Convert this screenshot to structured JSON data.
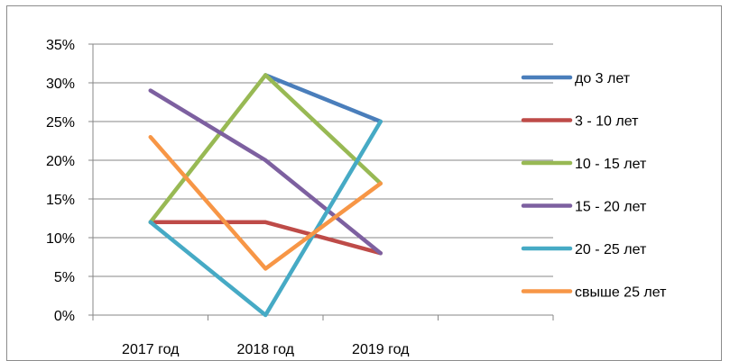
{
  "chart_data": {
    "type": "line",
    "categories": [
      "2017 год",
      "2018 год",
      "2019 год"
    ],
    "y_ticks": [
      "0%",
      "5%",
      "10%",
      "15%",
      "20%",
      "25%",
      "30%",
      "35%"
    ],
    "ylim": [
      0,
      35
    ],
    "y_unit": "%",
    "grid": true,
    "legend_position": "right",
    "series": [
      {
        "name": "до 3 лет",
        "color": "#4a7ebb",
        "values": [
          null,
          31,
          25
        ]
      },
      {
        "name": "3 - 10 лет",
        "color": "#be4b48",
        "values": [
          12,
          12,
          8
        ]
      },
      {
        "name": "10 - 15 лет",
        "color": "#98b954",
        "values": [
          12,
          31,
          17
        ]
      },
      {
        "name": "15 - 20 лет",
        "color": "#7d60a0",
        "values": [
          29,
          20,
          8
        ]
      },
      {
        "name": "20 - 25 лет",
        "color": "#46aac5",
        "values": [
          12,
          0,
          25
        ]
      },
      {
        "name": "свыше 25 лет",
        "color": "#f79646",
        "values": [
          23,
          6,
          17
        ]
      }
    ]
  }
}
